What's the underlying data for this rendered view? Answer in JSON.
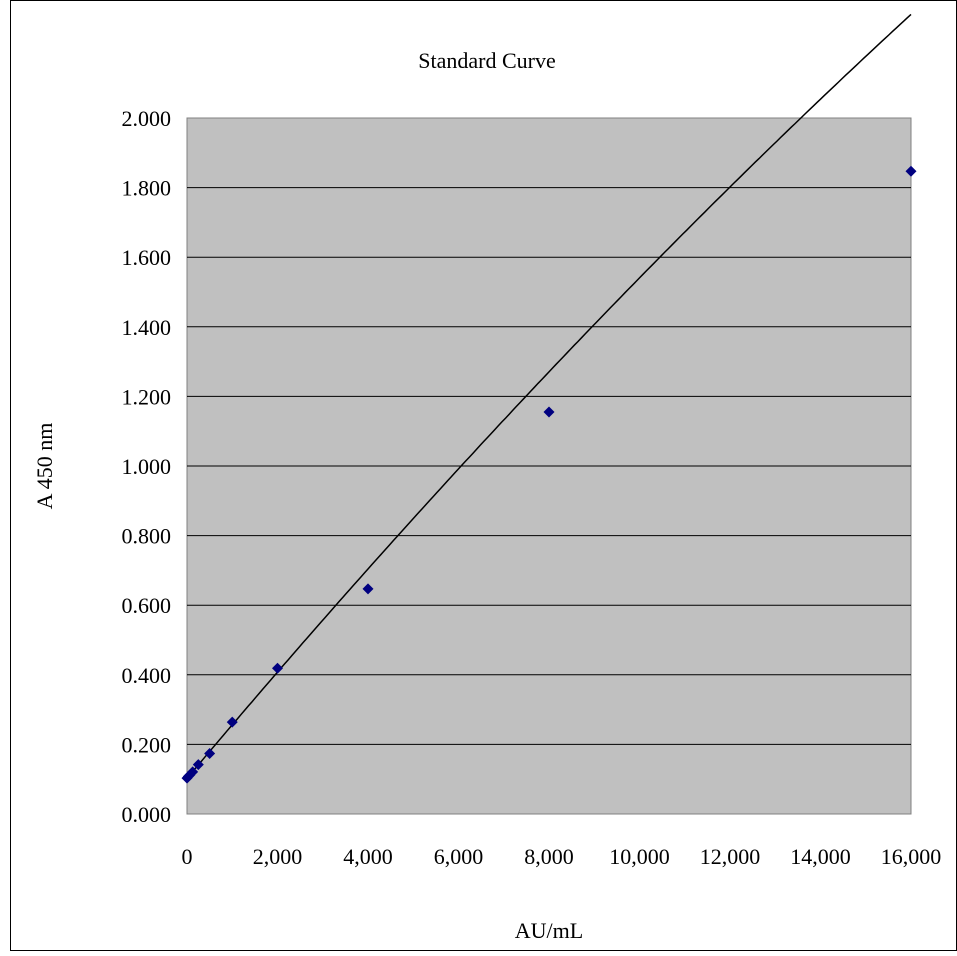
{
  "chart_data": {
    "type": "scatter",
    "title": "Standard Curve",
    "xlabel": "AU/mL",
    "ylabel": "A 450 nm",
    "xlim": [
      0,
      16000
    ],
    "ylim": [
      0,
      2
    ],
    "x_ticks": [
      "0",
      "2,000",
      "4,000",
      "6,000",
      "8,000",
      "10,000",
      "12,000",
      "14,000",
      "16,000"
    ],
    "y_ticks": [
      "0.000",
      "0.200",
      "0.400",
      "0.600",
      "0.800",
      "1.000",
      "1.200",
      "1.400",
      "1.600",
      "1.800",
      "2.000"
    ],
    "grid": "horizontal",
    "legend": "none",
    "plot_background": "#c0c0c0",
    "marker_color": "#000080",
    "series": [
      {
        "marker": "diamond",
        "points": [
          {
            "x": 0,
            "y": 0.103
          },
          {
            "x": 31.25,
            "y": 0.108
          },
          {
            "x": 62.5,
            "y": 0.112
          },
          {
            "x": 125,
            "y": 0.121
          },
          {
            "x": 250,
            "y": 0.142
          },
          {
            "x": 500,
            "y": 0.174
          },
          {
            "x": 1000,
            "y": 0.264
          },
          {
            "x": 2000,
            "y": 0.419
          },
          {
            "x": 4000,
            "y": 0.647
          },
          {
            "x": 8000,
            "y": 1.155
          },
          {
            "x": 16000,
            "y": 1.847
          }
        ]
      }
    ],
    "trendline": {
      "type": "polynomial",
      "coefficients": [
        0.1025,
        0.0001548,
        -1.1e-09
      ]
    }
  }
}
